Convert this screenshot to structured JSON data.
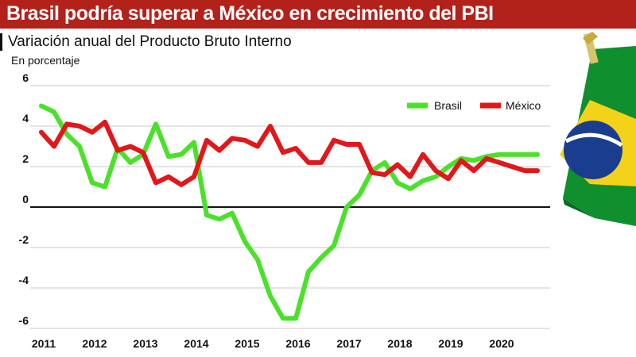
{
  "header": {
    "title": "Brasil podría superar a México en crecimiento del PBI",
    "subtitle": "Variación anual del Producto Bruto Interno",
    "unit": "En porcentaje"
  },
  "colors": {
    "brasil": "#4be12a",
    "mexico": "#e0171b",
    "title_bg": "#b3211b"
  },
  "decor": {
    "flag_icon": "brazil-flag-icon"
  },
  "chart_data": {
    "type": "line",
    "title": "Brasil podría superar a México en crecimiento del PBI",
    "subtitle": "Variación anual del Producto Bruto Interno",
    "ylabel": "En porcentaje",
    "xlabel": "",
    "ylim": [
      -6,
      6
    ],
    "xlim": [
      2011,
      2020.75
    ],
    "yticks": [
      6,
      4,
      2,
      0,
      -2,
      -4,
      -6
    ],
    "ytick_labels": [
      "6",
      "4",
      "2",
      "0",
      "-2",
      "-4",
      "-6"
    ],
    "xticks": [
      2011,
      2012,
      2013,
      2014,
      2015,
      2016,
      2017,
      2018,
      2019,
      2020
    ],
    "xtick_labels": [
      "2011",
      "2012",
      "2013",
      "2014",
      "2015",
      "2016",
      "2017",
      "2018",
      "2019",
      "2020"
    ],
    "grid": true,
    "legend": "top-right",
    "x": [
      2011,
      2011.25,
      2011.5,
      2011.75,
      2012,
      2012.25,
      2012.5,
      2012.75,
      2013,
      2013.25,
      2013.5,
      2013.75,
      2014,
      2014.25,
      2014.5,
      2014.75,
      2015,
      2015.25,
      2015.5,
      2015.75,
      2016,
      2016.25,
      2016.5,
      2016.75,
      2017,
      2017.25,
      2017.5,
      2017.75,
      2018,
      2018.25,
      2018.5,
      2018.75,
      2019,
      2019.25,
      2019.5,
      2019.75,
      2020,
      2020.25,
      2020.5,
      2020.75
    ],
    "series": [
      {
        "name": "Brasil",
        "values": [
          5.0,
          4.7,
          3.6,
          3.0,
          1.2,
          1.0,
          2.9,
          2.2,
          2.6,
          4.1,
          2.5,
          2.6,
          3.2,
          -0.4,
          -0.6,
          -0.3,
          -1.7,
          -2.6,
          -4.4,
          -5.5,
          -5.5,
          -3.2,
          -2.5,
          -1.9,
          0.0,
          0.6,
          1.8,
          2.2,
          1.2,
          0.9,
          1.3,
          1.5,
          2.0,
          2.4,
          2.3,
          2.5,
          2.6,
          2.6,
          2.6,
          2.6
        ]
      },
      {
        "name": "México",
        "values": [
          3.7,
          3.0,
          4.1,
          4.0,
          3.7,
          4.2,
          2.8,
          3.0,
          2.7,
          1.2,
          1.5,
          1.1,
          1.5,
          3.3,
          2.8,
          3.4,
          3.3,
          3.0,
          4.0,
          2.7,
          2.9,
          2.2,
          2.2,
          3.3,
          3.1,
          3.1,
          1.7,
          1.6,
          2.1,
          1.5,
          2.6,
          1.8,
          1.4,
          2.3,
          1.8,
          2.4,
          2.2,
          2.0,
          1.8,
          1.8
        ]
      }
    ]
  }
}
